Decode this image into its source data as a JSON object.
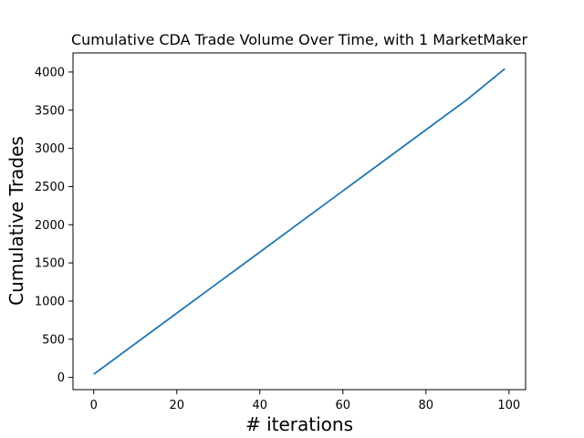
{
  "chart_data": {
    "type": "line",
    "title": "Cumulative CDA Trade Volume Over Time, with 1 MarketMaker",
    "xlabel": "# iterations",
    "ylabel": "Cumulative Trades",
    "xlim": [
      -5,
      104
    ],
    "ylim": [
      -160,
      4250
    ],
    "xticks": [
      0,
      20,
      40,
      60,
      80,
      100
    ],
    "yticks": [
      0,
      500,
      1000,
      1500,
      2000,
      2500,
      3000,
      3500,
      4000
    ],
    "grid": false,
    "line_color": "#1f77b4",
    "series": [
      {
        "x": [
          0,
          10,
          20,
          30,
          40,
          50,
          60,
          70,
          80,
          90,
          99
        ],
        "y": [
          42,
          442,
          842,
          1242,
          1642,
          2043,
          2443,
          2843,
          3243,
          3643,
          4043
        ]
      }
    ]
  }
}
